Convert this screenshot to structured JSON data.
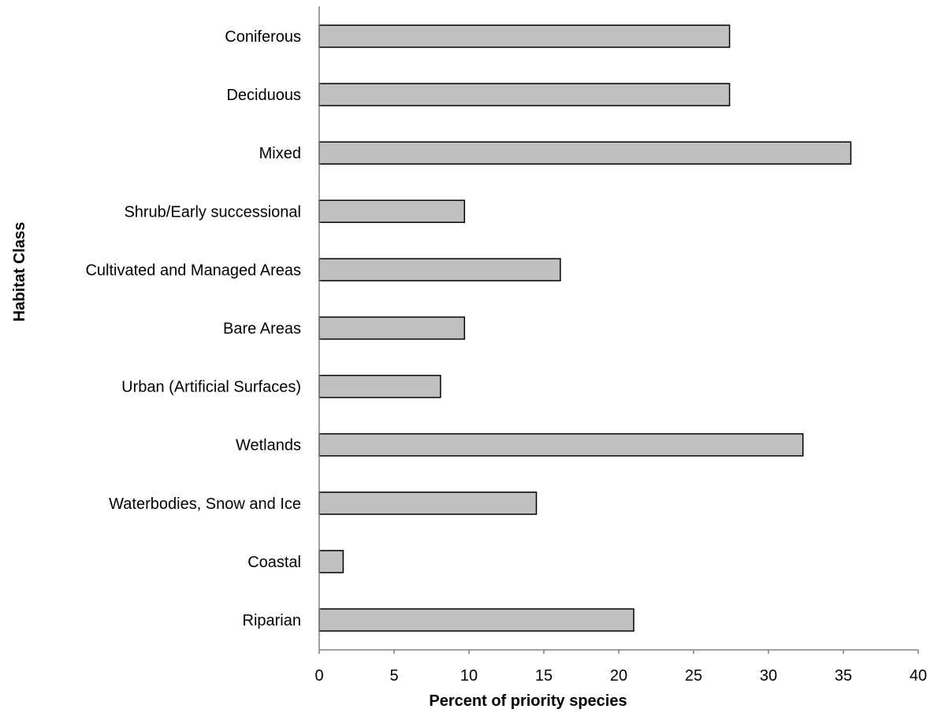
{
  "chart_data": {
    "type": "bar",
    "orientation": "horizontal",
    "title": "",
    "xlabel": "Percent of priority species",
    "ylabel": "Habitat Class",
    "xlim": [
      0,
      40
    ],
    "xticks": [
      0,
      5,
      10,
      15,
      20,
      25,
      30,
      35,
      40
    ],
    "grid": false,
    "legend": "none",
    "categories": [
      "Coniferous",
      "Deciduous",
      "Mixed",
      "Shrub/Early successional",
      "Cultivated and Managed Areas",
      "Bare Areas",
      "Urban (Artificial Surfaces)",
      "Wetlands",
      "Waterbodies, Snow and Ice",
      "Coastal",
      "Riparian"
    ],
    "values": [
      27.4,
      27.4,
      35.5,
      9.7,
      16.1,
      9.7,
      8.1,
      32.3,
      14.5,
      1.6,
      21.0
    ],
    "colors": {
      "bar_fill": "#c0c0c0",
      "bar_stroke": "#000000",
      "axis": "#808080"
    }
  }
}
